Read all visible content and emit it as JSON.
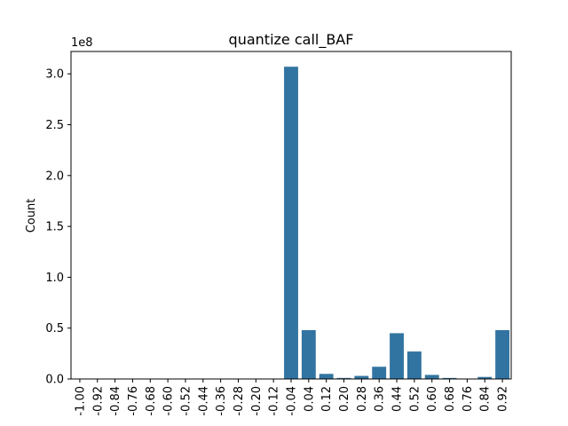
{
  "chart_data": {
    "type": "bar",
    "title": "quantize call_BAF",
    "xlabel": "",
    "ylabel": "Count",
    "y_offset_label": "1e8",
    "ylim": [
      0,
      3.22
    ],
    "y_unit_multiplier": 100000000,
    "yticks": [
      "0.0",
      "0.5",
      "1.0",
      "1.5",
      "2.0",
      "2.5",
      "3.0"
    ],
    "categories": [
      "-1.00",
      "-0.92",
      "-0.84",
      "-0.76",
      "-0.68",
      "-0.60",
      "-0.52",
      "-0.44",
      "-0.36",
      "-0.28",
      "-0.20",
      "-0.12",
      "-0.04",
      "0.04",
      "0.12",
      "0.20",
      "0.28",
      "0.36",
      "0.44",
      "0.52",
      "0.60",
      "0.68",
      "0.76",
      "0.84",
      "0.92"
    ],
    "values": [
      0,
      0,
      0,
      0,
      0,
      0,
      0,
      0,
      0,
      0,
      0,
      0,
      3.07,
      0.48,
      0.05,
      0.01,
      0.03,
      0.12,
      0.45,
      0.27,
      0.04,
      0.01,
      0.004,
      0.02,
      0.48
    ],
    "bar_color": "#3274a1",
    "grid": false,
    "legend": false
  }
}
